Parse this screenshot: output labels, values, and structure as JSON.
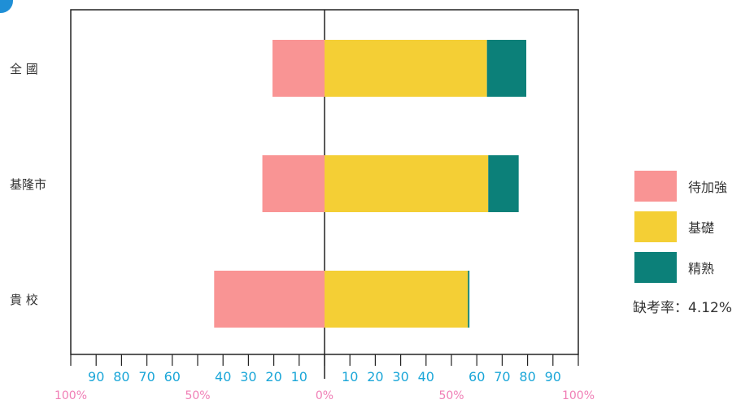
{
  "chart_data": {
    "type": "bar",
    "orientation": "horizontal-diverging",
    "categories": [
      "全 國",
      "基隆市",
      "貴 校"
    ],
    "series": [
      {
        "name": "待加強",
        "color": "#f99494",
        "direction": "left",
        "values": [
          20.5,
          24.5,
          43.5
        ]
      },
      {
        "name": "基礎",
        "color": "#f4cf35",
        "direction": "right",
        "values": [
          64,
          64.5,
          56.5
        ]
      },
      {
        "name": "精熟",
        "color": "#0c8079",
        "direction": "right",
        "values": [
          15.5,
          12,
          0.6
        ]
      }
    ],
    "xlim": [
      -100,
      100
    ],
    "tick_labels_left": [
      "90",
      "80",
      "70",
      "60",
      "40",
      "30",
      "20",
      "10"
    ],
    "tick_labels_right": [
      "10",
      "20",
      "30",
      "40",
      "60",
      "70",
      "80",
      "90"
    ],
    "percent_labels": [
      "100%",
      "50%",
      "0%",
      "50%",
      "100%"
    ],
    "legend_position": "right",
    "grid": false
  },
  "absence_rate": "缺考率：4.12%",
  "colors": {
    "axis": "#222222",
    "tick_text": "#1aa6d8",
    "percent_text": "#f07fb6"
  }
}
